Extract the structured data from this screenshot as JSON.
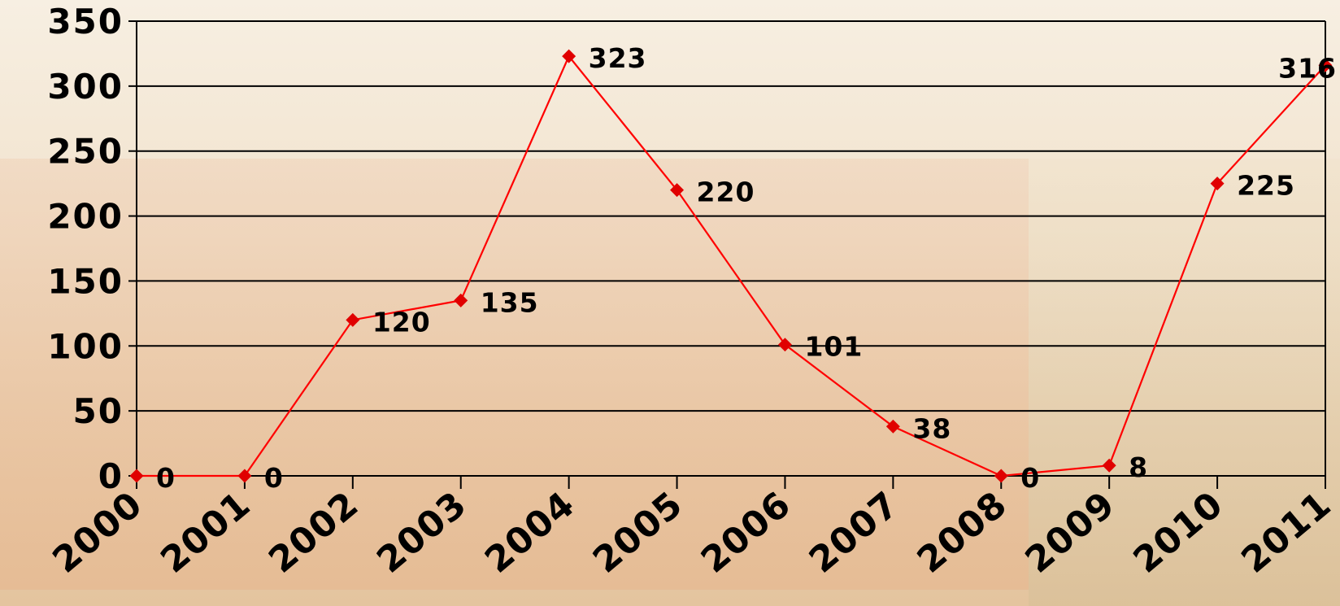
{
  "chart_data": {
    "type": "line",
    "title": "",
    "xlabel": "",
    "ylabel": "",
    "categories": [
      "2000",
      "2001",
      "2002",
      "2003",
      "2004",
      "2005",
      "2006",
      "2007",
      "2008",
      "2009",
      "2010",
      "2011"
    ],
    "series": [
      {
        "values": [
          0,
          0,
          120,
          135,
          323,
          220,
          101,
          38,
          0,
          8,
          225,
          316
        ]
      }
    ],
    "ylim": [
      0,
      350
    ],
    "yticks": [
      "0",
      "50",
      "100",
      "150",
      "200",
      "250",
      "300",
      "350"
    ],
    "grid": true,
    "legend": "none",
    "colors": {
      "line": "#ff0000",
      "marker": "#e00000",
      "grid": "#000000"
    }
  }
}
